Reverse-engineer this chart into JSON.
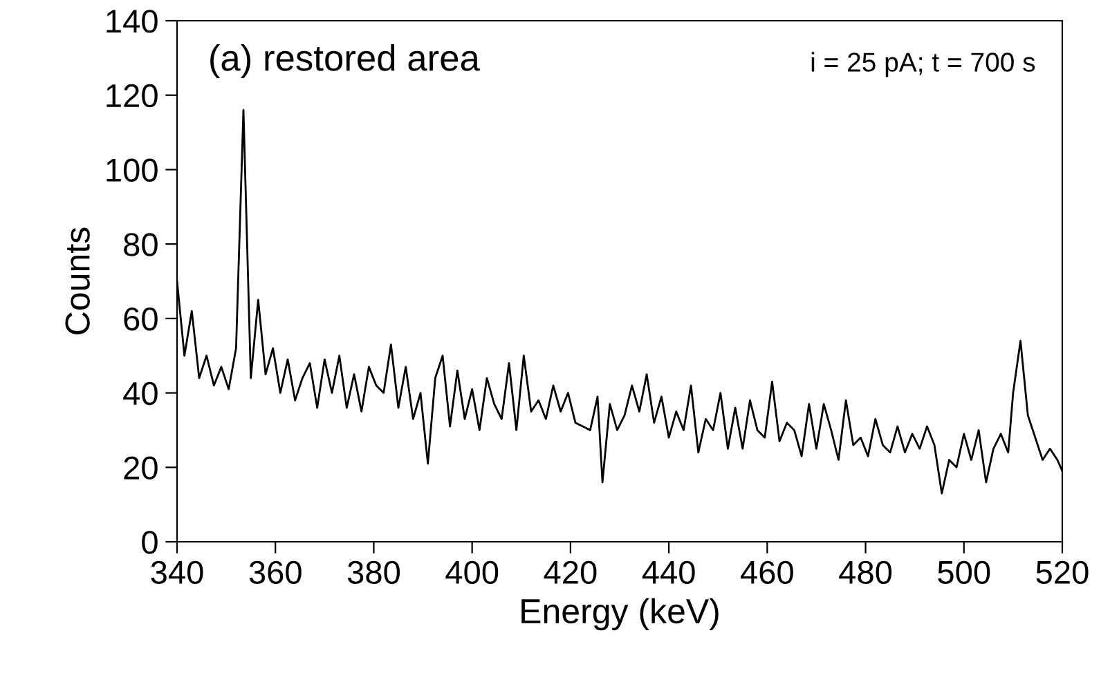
{
  "chart_data": {
    "type": "line",
    "title": "(a) restored area",
    "xlabel": "Energy (keV)",
    "ylabel": "Counts",
    "annotations": [
      "i = 25 pA; t = 700 s"
    ],
    "xlim": [
      340,
      520
    ],
    "xticks": [
      340,
      360,
      380,
      400,
      420,
      440,
      460,
      480,
      500,
      520
    ],
    "ylim": [
      0,
      140
    ],
    "yticks": [
      0,
      20,
      40,
      60,
      80,
      100,
      120,
      140
    ],
    "grid": false,
    "legend": false,
    "marker": "none",
    "line_style": "solid",
    "series": [
      {
        "color": "#000000",
        "x": [
          340,
          341.5,
          343,
          344.5,
          346,
          347.5,
          349,
          350.5,
          352,
          353.5,
          355,
          356.5,
          358,
          359.5,
          361,
          362.5,
          364,
          365.5,
          367,
          368.5,
          370,
          371.5,
          373,
          374.5,
          376,
          377.5,
          379,
          380.5,
          382,
          383.5,
          385,
          386.5,
          388,
          389.5,
          391,
          392.5,
          394,
          395.5,
          397,
          398.5,
          400,
          401.5,
          403,
          404.5,
          406,
          407.5,
          409,
          410.5,
          412,
          413.5,
          415,
          416.5,
          418,
          419.5,
          421,
          422.5,
          424,
          425.5,
          426.5,
          428,
          429.5,
          431,
          432.5,
          434,
          435.5,
          437,
          438.5,
          440,
          441.5,
          443,
          444.5,
          446,
          447.5,
          449,
          450.5,
          452,
          453.5,
          455,
          456.5,
          458,
          459.5,
          461,
          462.5,
          464,
          465.5,
          467,
          468.5,
          470,
          471.5,
          473,
          474.5,
          476,
          477.5,
          479,
          480.5,
          482,
          483.5,
          485,
          486.5,
          488,
          489.5,
          491,
          492.5,
          494,
          495.5,
          497,
          498.5,
          500,
          501.5,
          503,
          504.5,
          506,
          507.5,
          509,
          510,
          511.5,
          513,
          514.5,
          516,
          517.5,
          519,
          520
        ],
        "values": [
          70,
          50,
          62,
          44,
          50,
          42,
          47,
          41,
          52,
          116,
          44,
          65,
          45,
          52,
          40,
          49,
          38,
          44,
          48,
          36,
          49,
          40,
          50,
          36,
          45,
          35,
          47,
          42,
          40,
          53,
          36,
          47,
          33,
          40,
          21,
          44,
          50,
          31,
          46,
          33,
          41,
          30,
          44,
          37,
          33,
          48,
          30,
          50,
          35,
          38,
          33,
          42,
          35,
          40,
          32,
          31,
          30,
          39,
          16,
          37,
          30,
          34,
          42,
          35,
          45,
          32,
          39,
          28,
          35,
          30,
          42,
          24,
          33,
          30,
          40,
          25,
          36,
          25,
          38,
          30,
          28,
          43,
          27,
          32,
          30,
          23,
          37,
          25,
          37,
          30,
          22,
          38,
          26,
          28,
          23,
          33,
          26,
          24,
          31,
          24,
          29,
          25,
          31,
          26,
          13,
          22,
          20,
          29,
          22,
          30,
          16,
          25,
          29,
          24,
          40,
          54,
          34,
          28,
          22,
          25,
          22,
          19
        ]
      }
    ]
  }
}
